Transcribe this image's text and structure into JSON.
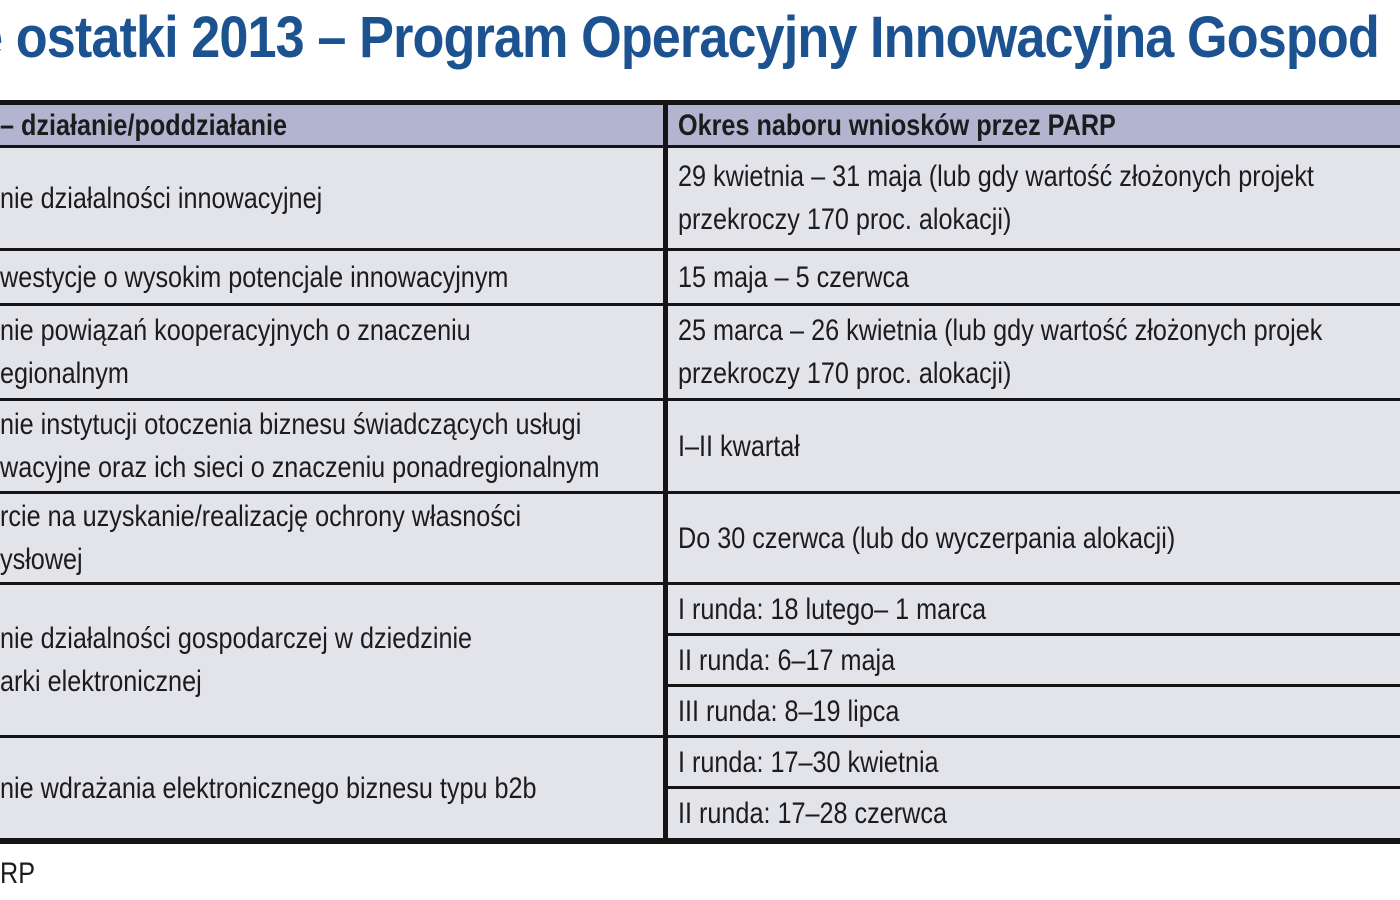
{
  "page": {
    "title": "e ostatki 2013 – Program Operacyjny Innowacyjna Gospod",
    "source_note": "RP"
  },
  "colors": {
    "title_blue": "#1d5290",
    "header_bg": "#b2b4d0",
    "row_bg": "#e3e3ea",
    "border": "#141414",
    "text": "#1c1c1c"
  },
  "table": {
    "headers": {
      "action": "– działanie/poddziałanie",
      "period": "Okres naboru wniosków przez PARP"
    },
    "rows": [
      {
        "action_lines": [
          "nie działalności innowacyjnej"
        ],
        "period_lines": [
          "29 kwietnia – 31 maja (lub gdy wartość złożonych projekt",
          "przekroczy 170 proc. alokacji)"
        ]
      },
      {
        "action_lines": [
          "westycje o wysokim potencjale innowacyjnym"
        ],
        "period_lines": [
          "15 maja – 5 czerwca"
        ]
      },
      {
        "action_lines": [
          "nie powiązań kooperacyjnych o znaczeniu",
          "egionalnym"
        ],
        "period_lines": [
          "25 marca – 26 kwietnia (lub gdy wartość złożonych projek",
          "przekroczy 170 proc. alokacji)"
        ]
      },
      {
        "action_lines": [
          "nie instytucji otoczenia biznesu świadczących usługi",
          "wacyjne oraz ich sieci o znaczeniu ponadregionalnym"
        ],
        "period_lines": [
          "I–II kwartał"
        ]
      },
      {
        "action_lines": [
          "rcie na uzyskanie/realizację ochrony własności",
          "ysłowej"
        ],
        "period_lines": [
          "Do 30 czerwca (lub do wyczerpania alokacji)"
        ]
      },
      {
        "action_lines": [
          "nie działalności gospodarczej w dziedzinie",
          "arki elektronicznej"
        ],
        "period_subrows": [
          "I runda: 18 lutego– 1 marca",
          "II runda: 6–17 maja",
          "III runda: 8–19 lipca"
        ]
      },
      {
        "action_lines": [
          "nie wdrażania elektronicznego biznesu typu b2b"
        ],
        "period_subrows": [
          "I runda: 17–30 kwietnia",
          "II runda: 17–28 czerwca"
        ]
      }
    ]
  }
}
